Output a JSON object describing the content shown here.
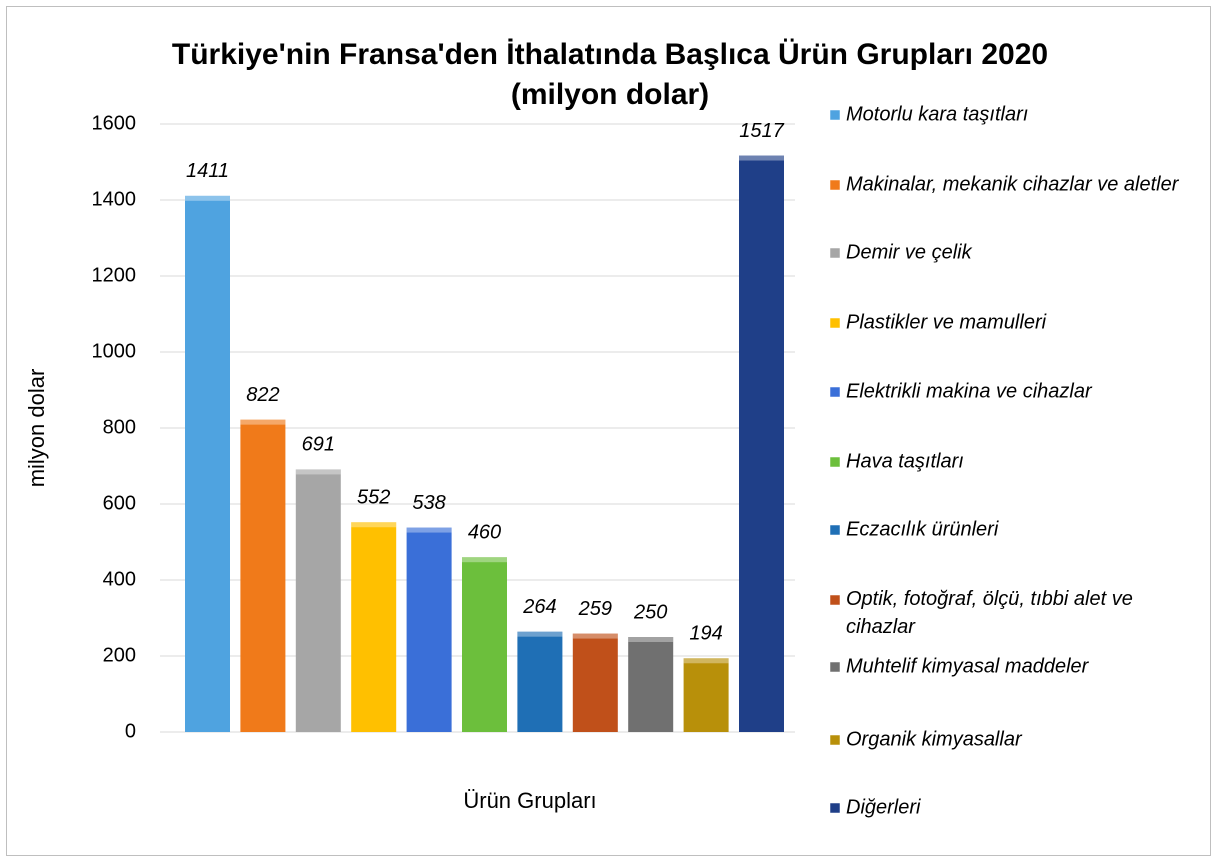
{
  "chart_data": {
    "type": "bar",
    "title": "Türkiye'nin Fransa'den İthalatında Başlıca Ürün Grupları 2020",
    "subtitle": "(milyon dolar)",
    "y_label": "milyon dolar",
    "x_label": "Ürün Grupları",
    "categories": [
      null
    ],
    "series": [
      {
        "name": "Motorlu kara taşıtları",
        "color": "#4fa3e0",
        "values": [
          1411
        ]
      },
      {
        "name": "Makinalar, mekanik cihazlar ve aletler",
        "color": "#f07a1a",
        "values": [
          822
        ]
      },
      {
        "name": "Demir ve çelik",
        "color": "#a6a6a6",
        "values": [
          691
        ]
      },
      {
        "name": "Plastikler ve mamulleri",
        "color": "#ffc000",
        "values": [
          552
        ]
      },
      {
        "name": "Elektrikli makina ve cihazlar",
        "color": "#3a6fd8",
        "values": [
          538
        ]
      },
      {
        "name": "Hava taşıtları",
        "color": "#6cbf3c",
        "values": [
          460
        ]
      },
      {
        "name": "Eczacılık ürünleri",
        "color": "#1f6fb5",
        "values": [
          264
        ]
      },
      {
        "name": "Optik, fotoğraf, ölçü, tıbbi alet ve cihazlar",
        "color": "#c0501a",
        "values": [
          259
        ]
      },
      {
        "name": "Muhtelif kimyasal maddeler",
        "color": "#707070",
        "values": [
          250
        ]
      },
      {
        "name": "Organik kimyasallar",
        "color": "#b8900a",
        "values": [
          194
        ]
      },
      {
        "name": "Diğerleri",
        "color": "#1f3f88",
        "values": [
          1517
        ]
      }
    ],
    "ylim": [
      0,
      1600
    ],
    "yticks": [
      0,
      200,
      400,
      600,
      800,
      1000,
      1200,
      1400,
      1600
    ],
    "grid": true,
    "legend": "right"
  }
}
